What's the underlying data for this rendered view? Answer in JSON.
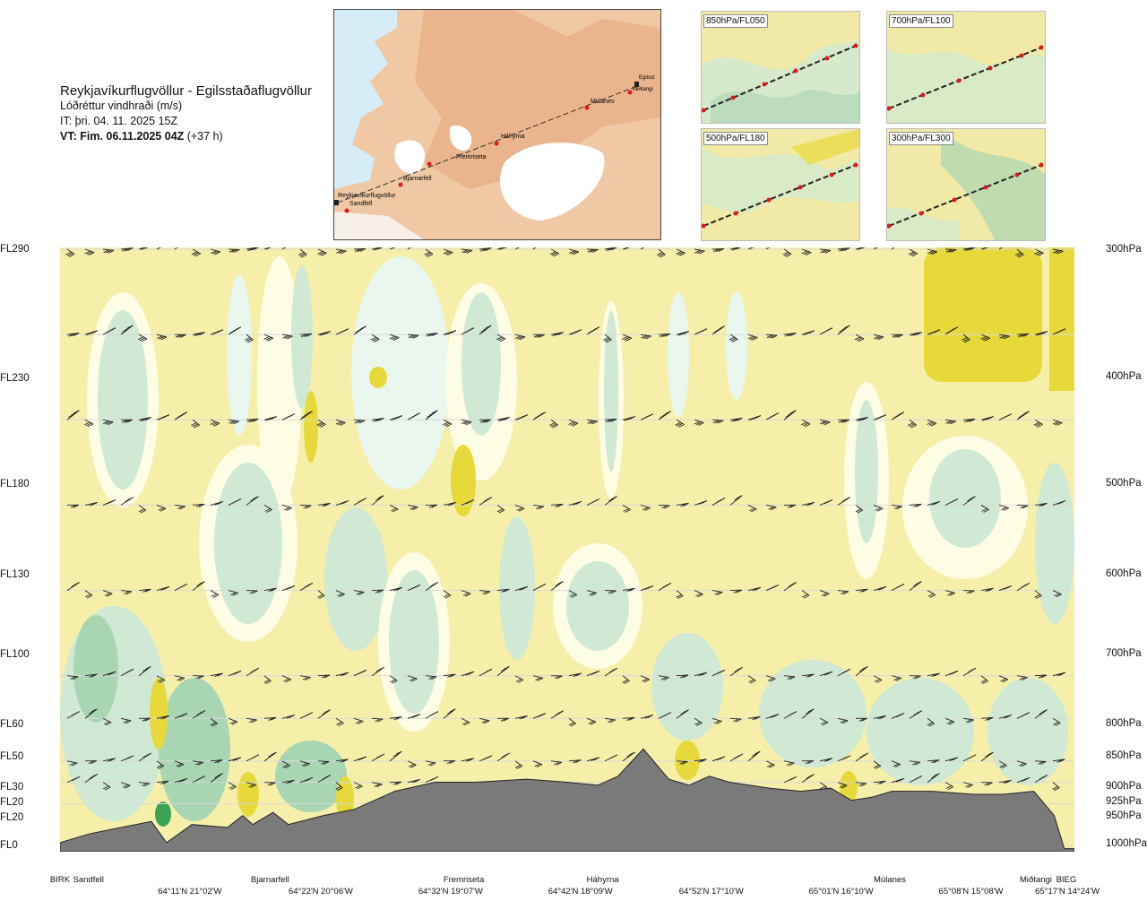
{
  "header": {
    "route": "Reykjavíkurflugvöllur - Egilsstaðaflugvöllur",
    "parameter": "Lóðréttur vindhraði (m/s)",
    "issue_time": "IT: þri. 04. 11. 2025 15Z",
    "valid_time": "VT: Fim. 06.11.2025 04Z",
    "lead": " (+37 h)"
  },
  "route_map": {
    "waypoints": [
      "Reykjavíkurflugvöllur",
      "Sandfell",
      "Bjarnarfell",
      "Fremriseta",
      "Háhyrna",
      "Múlanes",
      "Miðtangi",
      "Egilsst"
    ]
  },
  "level_maps": [
    {
      "label": "850hPa/FL050"
    },
    {
      "label": "700hPa/FL100"
    },
    {
      "label": "500hPa/FL180"
    },
    {
      "label": "300hPa/FL300"
    }
  ],
  "colors": {
    "terrain": "#7a7a7a",
    "neutral": "#f5efaa",
    "up_strong": "#e7d93a",
    "up_weak": "#fdfce4",
    "down_weak": "#e9f7ee",
    "down_med": "#cfe9d4",
    "down_strong": "#a8d6b2",
    "down_max": "#3aa454"
  },
  "chart_data": {
    "type": "heatmap",
    "title": "Lóðréttur vindhraði (m/s)",
    "x_axis": {
      "locations": [
        "BIRK",
        "Sandfell",
        "Bjarnarfell",
        "Fremriseta",
        "Háhyrna",
        "Múlanes",
        "Miðtangi",
        "BIEG"
      ],
      "coordinates": [
        "64°11'N 21°02'W",
        "64°22'N 20°06'W",
        "64°32'N 19°07'W",
        "64°42'N 18°09'W",
        "64°52'N 17°10'W",
        "65°01'N 16°10'W",
        "65°08'N 15°08'W",
        "65°17'N 14°24'W"
      ]
    },
    "y_axis_left": [
      "FL290",
      "FL230",
      "FL180",
      "FL130",
      "FL100",
      "FL60",
      "FL50",
      "FL30",
      "FL20",
      "FL20",
      "FL0"
    ],
    "y_axis_right": [
      "300hPa",
      "400hPa",
      "500hPa",
      "600hPa",
      "700hPa",
      "800hPa",
      "850hPa",
      "900hPa",
      "925hPa",
      "950hPa",
      "1000hPa"
    ],
    "pressure_levels_hpa": [
      300,
      400,
      500,
      600,
      700,
      800,
      850,
      900,
      925,
      950,
      1000
    ],
    "location_positions_frac": [
      0,
      0.028,
      0.207,
      0.398,
      0.535,
      0.818,
      0.962,
      0.992
    ],
    "coordinate_positions_frac": [
      0.128,
      0.257,
      0.385,
      0.513,
      0.642,
      0.77,
      0.898,
      0.993
    ],
    "terrain_height_frac": [
      0.03,
      0.06,
      0.08,
      0.1,
      0.03,
      0.09,
      0.08,
      0.12,
      0.09,
      0.13,
      0.09,
      0.12,
      0.14,
      0.2,
      0.23,
      0.23,
      0.24,
      0.23,
      0.22,
      0.25,
      0.34,
      0.24,
      0.22,
      0.25,
      0.23,
      0.21,
      0.2,
      0.21,
      0.17,
      0.18,
      0.2,
      0.2,
      0.19,
      0.19,
      0.2,
      0.12,
      0.01,
      0.01
    ],
    "terrain_x_frac": [
      0,
      0.03,
      0.06,
      0.09,
      0.105,
      0.13,
      0.165,
      0.18,
      0.19,
      0.21,
      0.225,
      0.26,
      0.29,
      0.33,
      0.37,
      0.41,
      0.46,
      0.5,
      0.53,
      0.55,
      0.575,
      0.6,
      0.62,
      0.64,
      0.66,
      0.7,
      0.73,
      0.76,
      0.78,
      0.8,
      0.82,
      0.86,
      0.9,
      0.93,
      0.96,
      0.98,
      0.99,
      1.0
    ]
  }
}
